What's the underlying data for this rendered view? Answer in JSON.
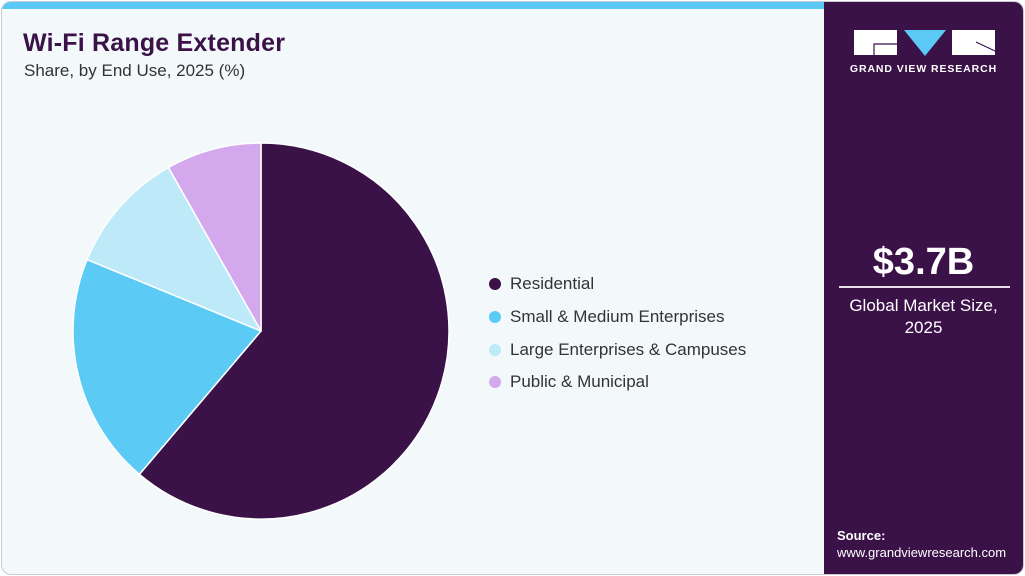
{
  "header": {
    "title": "Wi-Fi Range Extender",
    "subtitle": "Share, by End Use, 2025 (%)"
  },
  "colors": {
    "brand_dark": "#3A1248",
    "accent": "#5BC8F5",
    "background": "#F3F8FB"
  },
  "chart_data": {
    "type": "pie",
    "title": "Wi-Fi Range Extender",
    "subtitle": "Share, by End Use, 2025 (%)",
    "categories": [
      "Residential",
      "Small & Medium Enterprises",
      "Large Enterprises & Campuses",
      "Public & Municipal"
    ],
    "values": [
      61.2,
      20.0,
      10.6,
      8.2
    ],
    "colors": [
      "#3A1248",
      "#5BCBF5",
      "#BDE9F8",
      "#D4A8EC"
    ],
    "start_angle": "12 o'clock, clockwise",
    "legend_position": "right",
    "data_labels": false
  },
  "legend": {
    "items": [
      {
        "label": "Residential",
        "color": "#3A1248"
      },
      {
        "label": "Small & Medium Enterprises",
        "color": "#5BCBF5"
      },
      {
        "label": "Large Enterprises & Campuses",
        "color": "#BDE9F8"
      },
      {
        "label": "Public & Municipal",
        "color": "#D4A8EC"
      }
    ]
  },
  "sidebar": {
    "logo_text": "GRAND VIEW RESEARCH",
    "market_value": "$3.7B",
    "market_label_line1": "Global Market Size,",
    "market_label_line2": "2025",
    "source_label": "Source:",
    "source_url": "www.grandviewresearch.com"
  }
}
